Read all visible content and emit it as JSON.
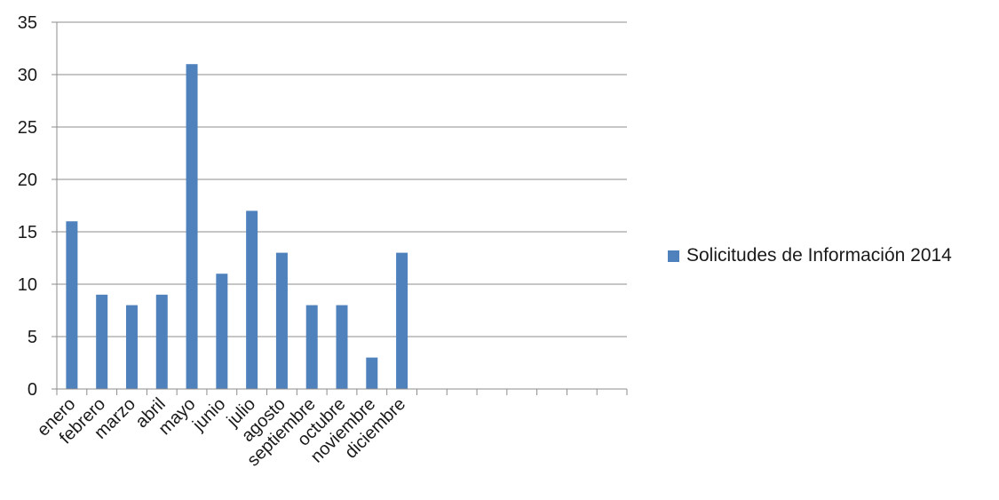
{
  "chart_data": {
    "type": "bar",
    "title": "",
    "xlabel": "",
    "ylabel": "",
    "categories": [
      "enero",
      "febrero",
      "marzo",
      "abril",
      "mayo",
      "junio",
      "julio",
      "agosto",
      "septiembre",
      "octubre",
      "noviembre",
      "diciembre",
      "",
      "",
      "",
      "",
      "",
      "",
      ""
    ],
    "series": [
      {
        "name": "Solicitudes de Información 2014",
        "values": [
          16,
          9,
          8,
          9,
          31,
          11,
          17,
          13,
          8,
          8,
          3,
          13,
          null,
          null,
          null,
          null,
          null,
          null,
          null
        ]
      }
    ],
    "ylim": [
      0,
      35
    ],
    "yticks": [
      0,
      5,
      10,
      15,
      20,
      25,
      30,
      35
    ],
    "grid": true,
    "legend_position": "right",
    "bar_color": "#4f81bd",
    "grid_color": "#8c8c8c",
    "axis_color": "#8c8c8c"
  }
}
